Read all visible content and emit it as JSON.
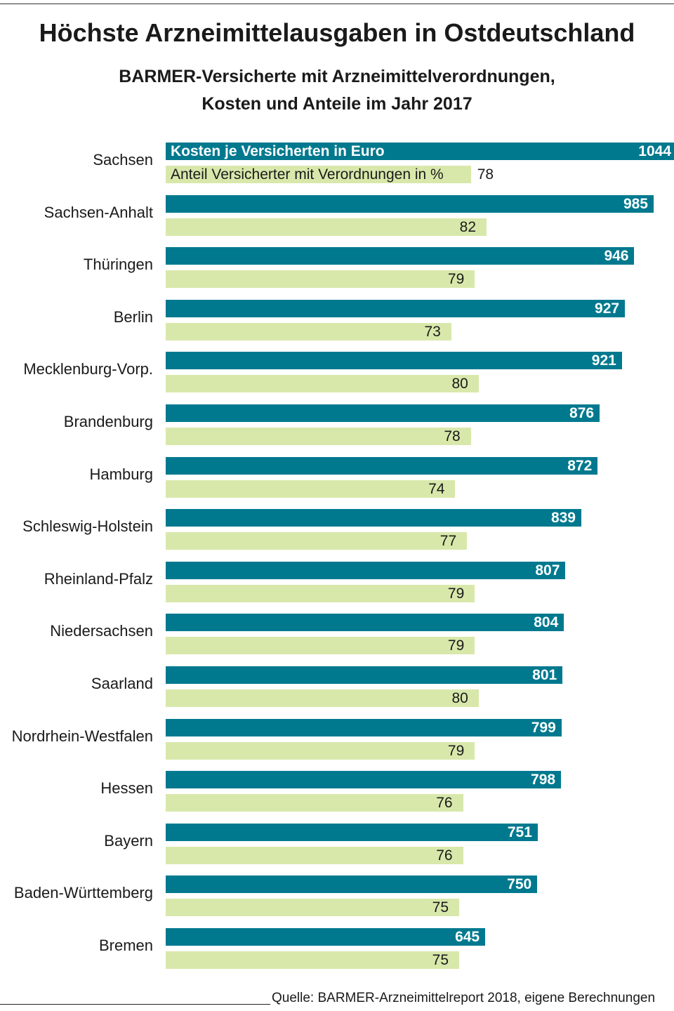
{
  "title": "Höchste Arzneimittelausgaben in Ostdeutschland",
  "subtitle_line1": "BARMER-Versicherte mit Arzneimittelverordnungen,",
  "subtitle_line2": "Kosten und Anteile im Jahr 2017",
  "source": "Quelle: BARMER-Arzneimittelreport 2018, eigene Berechnungen",
  "colors": {
    "kosten": "#00798f",
    "anteil": "#d8e8ab"
  },
  "chart_data": {
    "type": "bar",
    "orientation": "horizontal",
    "title": "Höchste Arzneimittelausgaben in Ostdeutschland",
    "categories": [
      "Sachsen",
      "Sachsen-Anhalt",
      "Thüringen",
      "Berlin",
      "Mecklenburg-Vorp.",
      "Brandenburg",
      "Hamburg",
      "Schleswig-Holstein",
      "Rheinland-Pfalz",
      "Niedersachsen",
      "Saarland",
      "Nordrhein-Westfalen",
      "Hessen",
      "Bayern",
      "Baden-Württemberg",
      "Bremen"
    ],
    "series": [
      {
        "name": "Kosten je Versicherten in Euro",
        "values": [
          1044,
          985,
          946,
          927,
          921,
          876,
          872,
          839,
          807,
          804,
          801,
          799,
          798,
          751,
          750,
          645
        ]
      },
      {
        "name": "Anteil Versicherter mit Verordnungen in %",
        "values": [
          78,
          82,
          79,
          73,
          80,
          78,
          74,
          77,
          79,
          79,
          80,
          79,
          76,
          76,
          75,
          75
        ]
      }
    ],
    "legend": "inline-first-row"
  }
}
